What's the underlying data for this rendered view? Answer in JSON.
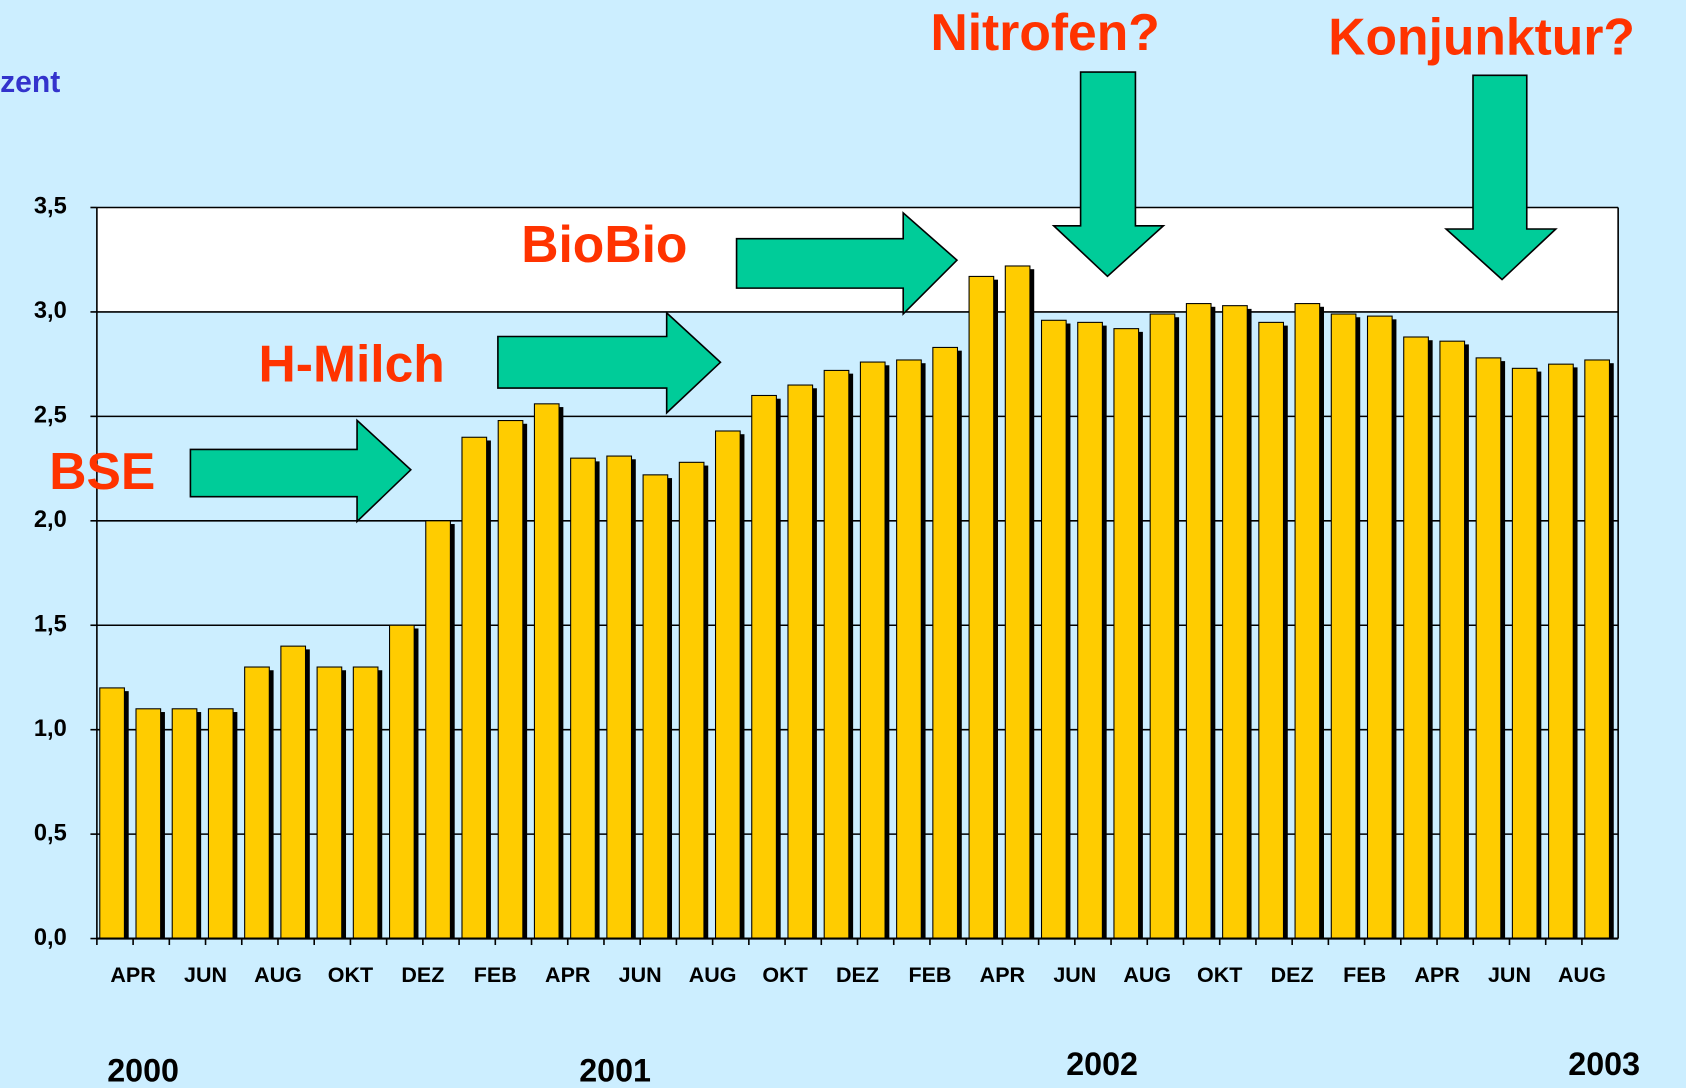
{
  "chart_data": {
    "type": "bar",
    "y_label": "zent",
    "categories": [
      "APR",
      null,
      "JUN",
      null,
      "AUG",
      null,
      "OKT",
      null,
      "DEZ",
      null,
      "FEB",
      null,
      "APR",
      null,
      "JUN",
      null,
      "AUG",
      null,
      "OKT",
      null,
      "DEZ",
      null,
      "FEB",
      null,
      "APR",
      null,
      "JUN",
      null,
      "AUG",
      null,
      "OKT",
      null,
      "DEZ",
      null,
      "FEB",
      null,
      "APR",
      null,
      "JUN",
      null,
      "AUG",
      null
    ],
    "values": [
      1.2,
      1.1,
      1.1,
      1.1,
      1.3,
      1.4,
      1.3,
      1.3,
      1.5,
      2.0,
      2.4,
      2.48,
      2.56,
      2.3,
      2.31,
      2.22,
      2.28,
      2.43,
      2.6,
      2.65,
      2.72,
      2.76,
      2.77,
      2.83,
      3.17,
      3.22,
      2.96,
      2.95,
      2.92,
      2.99,
      3.04,
      3.03,
      2.95,
      3.04,
      2.99,
      2.98,
      2.88,
      2.86,
      2.78,
      2.73,
      2.75,
      2.77
    ],
    "color": "#ffcc00",
    "ylim": [
      0,
      3.5
    ],
    "yticks": [
      {
        "value": 0,
        "label": "0,0"
      },
      {
        "value": 0.5,
        "label": "0,5"
      },
      {
        "value": 1,
        "label": "1,0"
      },
      {
        "value": 1.5,
        "label": "1,5"
      },
      {
        "value": 2,
        "label": "2,0"
      },
      {
        "value": 2.5,
        "label": "2,5"
      },
      {
        "value": 3,
        "label": "3,0"
      },
      {
        "value": 3.5,
        "label": "3,5"
      }
    ],
    "grid": true,
    "year_labels": [
      "2000",
      "2001",
      "2002",
      "2003"
    ],
    "annotations": [
      "BSE",
      "H-Milch",
      "BioBio",
      "Nitrofen?",
      "Konjunktur?"
    ]
  }
}
